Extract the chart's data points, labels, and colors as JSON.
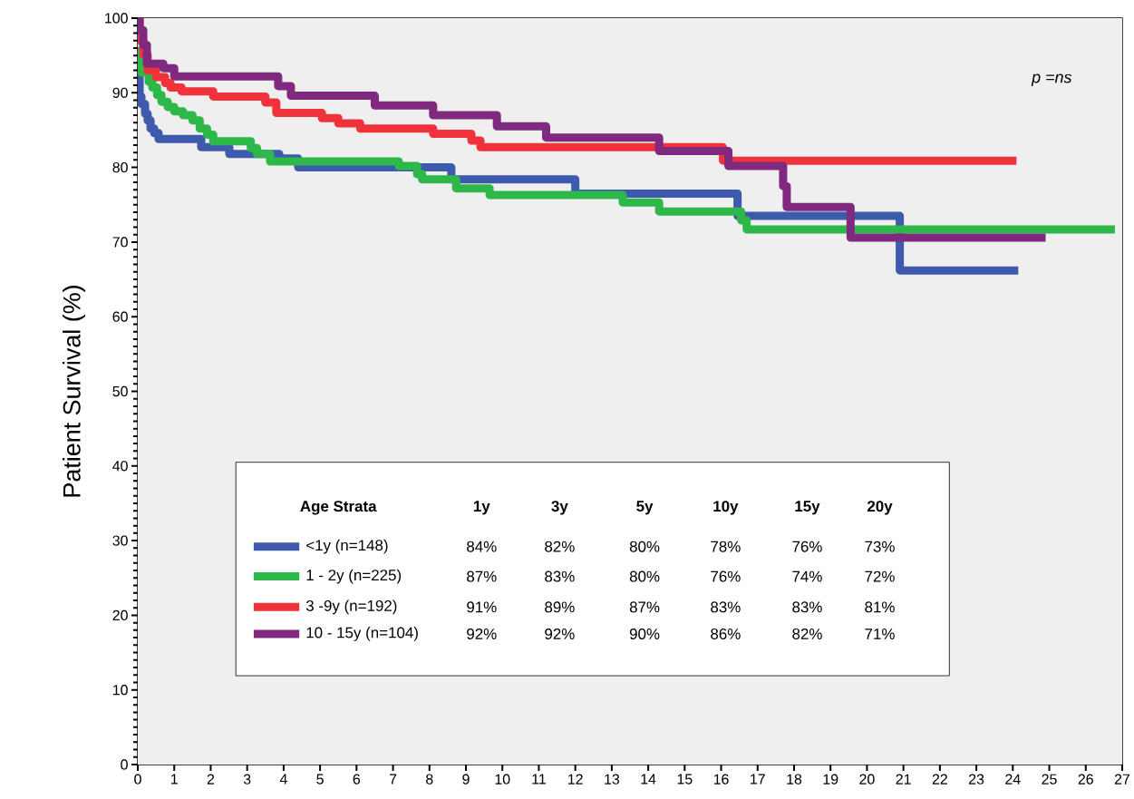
{
  "chart_data": {
    "type": "step",
    "ylabel": "Patient Survival (%)",
    "legend_title": "Age Strata",
    "legend": "bottom",
    "xlim": [
      0,
      27
    ],
    "ylim": [
      0,
      100
    ],
    "xticks": [
      0,
      1,
      2,
      3,
      4,
      5,
      6,
      7,
      8,
      9,
      10,
      11,
      12,
      13,
      14,
      15,
      16,
      17,
      18,
      19,
      20,
      21,
      22,
      23,
      24,
      25,
      26,
      27
    ],
    "yticks": [
      0,
      10,
      20,
      30,
      40,
      50,
      60,
      70,
      80,
      90,
      100
    ],
    "annotations": [
      "p =ns",
      "1y",
      "3y",
      "5y",
      "10y",
      "15y",
      "20y",
      "84%",
      "82%",
      "80%",
      "78%",
      "76%",
      "73%",
      "87%",
      "83%",
      "80%",
      "76%",
      "74%",
      "72%",
      "91%",
      "89%",
      "87%",
      "83%",
      "83%",
      "81%",
      "92%",
      "92%",
      "90%",
      "86%",
      "82%",
      "71%"
    ],
    "series": [
      {
        "name": "<1y  (n=148)",
        "color": "#3d5aad",
        "x": [
          0,
          0.05,
          0.1,
          0.2,
          0.27,
          0.35,
          0.45,
          0.57,
          1.74,
          2.51,
          3.88,
          4.4,
          8.6,
          12.0,
          16.45,
          20.9,
          24.15
        ],
        "values": [
          92,
          89.5,
          88.5,
          87.2,
          86.3,
          85.2,
          84.6,
          83.8,
          82.7,
          81.8,
          81.2,
          80.0,
          78.4,
          76.5,
          73.5,
          66.2,
          66.2
        ]
      },
      {
        "name": "1 - 2y (n=225)",
        "color": "#2fb84a",
        "x": [
          0,
          0.1,
          0.3,
          0.4,
          0.53,
          0.65,
          0.82,
          1.0,
          1.24,
          1.5,
          1.7,
          1.9,
          2.07,
          3.1,
          3.27,
          3.63,
          7.16,
          7.66,
          7.8,
          8.73,
          9.65,
          13.3,
          14.3,
          16.55,
          16.7,
          26.8
        ],
        "values": [
          95.6,
          92.7,
          91.5,
          90.7,
          89.7,
          88.8,
          88.1,
          87.5,
          87.0,
          86.3,
          85.2,
          84.4,
          83.5,
          82.6,
          81.8,
          80.8,
          80.2,
          79.1,
          78.4,
          77.2,
          76.3,
          75.3,
          74.1,
          72.9,
          71.7,
          71.7
        ]
      },
      {
        "name": "3 -9y (n=192)",
        "color": "#f0333a",
        "x": [
          0,
          0.05,
          0.15,
          0.27,
          0.5,
          0.75,
          0.9,
          1.2,
          2.07,
          3.5,
          3.8,
          5.05,
          5.5,
          6.1,
          8.1,
          9.15,
          9.4,
          16.05,
          24.1
        ],
        "values": [
          100,
          97,
          95.1,
          93.0,
          92.1,
          91.3,
          90.7,
          90.2,
          89.5,
          88.7,
          87.3,
          86.6,
          85.9,
          85.2,
          84.5,
          83.6,
          82.7,
          80.9,
          80.9
        ]
      },
      {
        "name": "10 - 15y (n=104)",
        "color": "#7f2a7f",
        "x": [
          0,
          0.05,
          0.15,
          0.25,
          0.7,
          1.0,
          3.85,
          4.2,
          6.5,
          8.1,
          9.85,
          11.2,
          14.3,
          16.2,
          17.7,
          17.8,
          19.55,
          24.9
        ],
        "values": [
          100,
          98.4,
          96.4,
          93.9,
          93.3,
          92.2,
          90.9,
          89.6,
          88.3,
          87.0,
          85.5,
          84.0,
          82.2,
          80.2,
          77.5,
          74.7,
          70.6,
          70.6
        ]
      }
    ]
  }
}
